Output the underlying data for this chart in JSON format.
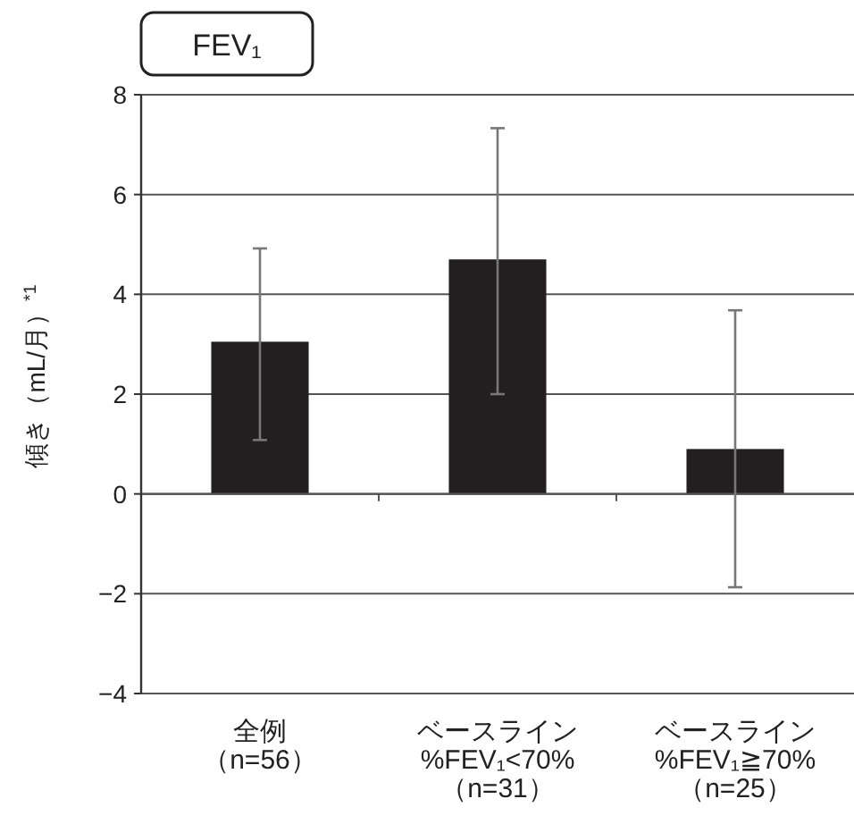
{
  "chart_data": {
    "type": "bar",
    "title": "FEV₁",
    "ylabel": "傾き（mL/月）$^{*1}$",
    "categories": [
      "全例（n=56）",
      "ベースライン%FEV₁<70%（n=31）",
      "ベースライン%FEV₁≧70%（n=25）"
    ],
    "values": [
      3.05,
      4.7,
      0.9
    ],
    "errors": [
      [
        1.08,
        4.92
      ],
      [
        2.0,
        7.33
      ],
      [
        -1.87,
        3.68
      ]
    ],
    "color": "#231f20",
    "ylim": [
      -4,
      8
    ],
    "yticks": [
      {
        "value": -4,
        "label": "−4"
      },
      {
        "value": -2,
        "label": "−2"
      },
      0,
      2,
      4,
      6,
      8
    ],
    "grid": "y"
  }
}
